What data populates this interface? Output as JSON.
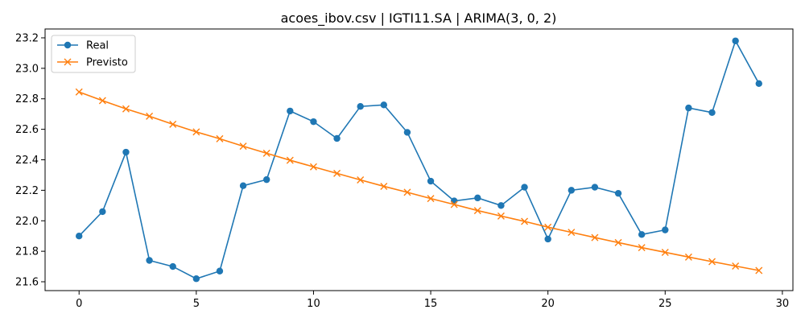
{
  "chart_data": {
    "type": "line",
    "title": "acoes_ibov.csv | IGTI11.SA | ARIMA(3, 0, 2)",
    "xlabel": "",
    "ylabel": "",
    "xlim": [
      -1.45,
      30.45
    ],
    "ylim": [
      21.542,
      23.258
    ],
    "x_ticks": [
      0,
      5,
      10,
      15,
      20,
      25,
      30
    ],
    "x_tick_labels": [
      "0",
      "5",
      "10",
      "15",
      "20",
      "25",
      "30"
    ],
    "y_ticks": [
      21.6,
      21.8,
      22.0,
      22.2,
      22.4,
      22.6,
      22.8,
      23.0,
      23.2
    ],
    "y_tick_labels": [
      "21.6",
      "21.8",
      "22.0",
      "22.2",
      "22.4",
      "22.6",
      "22.8",
      "23.0",
      "23.2"
    ],
    "grid": false,
    "legend_position": "top-left",
    "x": [
      0,
      1,
      2,
      3,
      4,
      5,
      6,
      7,
      8,
      9,
      10,
      11,
      12,
      13,
      14,
      15,
      16,
      17,
      18,
      19,
      20,
      21,
      22,
      23,
      24,
      25,
      26,
      27,
      28,
      29
    ],
    "series": [
      {
        "name": "Real",
        "color": "#1f77b4",
        "marker": "circle",
        "values": [
          21.9,
          22.06,
          22.45,
          21.74,
          21.7,
          21.62,
          21.67,
          22.23,
          22.27,
          22.72,
          22.65,
          22.54,
          22.75,
          22.76,
          22.58,
          22.26,
          22.13,
          22.15,
          22.1,
          22.22,
          21.88,
          22.2,
          22.22,
          22.18,
          21.91,
          21.94,
          22.74,
          22.71,
          23.18,
          22.9
        ]
      },
      {
        "name": "Previsto",
        "color": "#ff7f0e",
        "marker": "x",
        "values": [
          22.845,
          22.788,
          22.734,
          22.686,
          22.633,
          22.583,
          22.538,
          22.489,
          22.443,
          22.397,
          22.354,
          22.311,
          22.268,
          22.226,
          22.187,
          22.146,
          22.107,
          22.067,
          22.031,
          21.996,
          21.958,
          21.924,
          21.89,
          21.857,
          21.824,
          21.793,
          21.762,
          21.732,
          21.703,
          21.674
        ]
      }
    ]
  }
}
